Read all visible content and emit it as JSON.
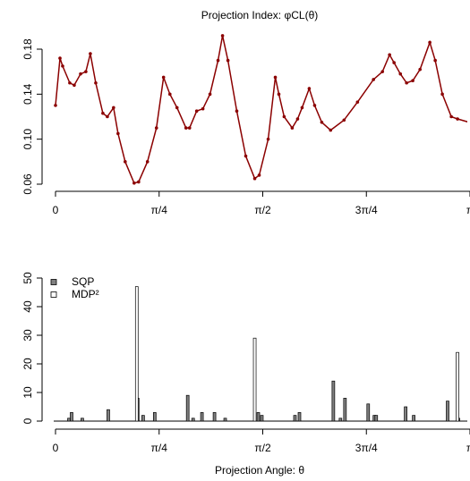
{
  "chart_data": [
    {
      "type": "line",
      "title": "Projection Index: φCL(θ)",
      "color": "#8b0000",
      "x": [
        0,
        0.034,
        0.054,
        0.108,
        0.142,
        0.19,
        0.23,
        0.264,
        0.305,
        0.359,
        0.393,
        0.44,
        0.474,
        0.528,
        0.596,
        0.63,
        0.697,
        0.765,
        0.819,
        0.867,
        0.921,
        0.989,
        1.016,
        1.07,
        1.117,
        1.171,
        1.232,
        1.266,
        1.307,
        1.374,
        1.442,
        1.51,
        1.544,
        1.612,
        1.666,
        1.693,
        1.733,
        1.794,
        1.835,
        1.869,
        1.923,
        1.964,
        2.018,
        2.085,
        2.187,
        2.289,
        2.41,
        2.478,
        2.532,
        2.566,
        2.614,
        2.661,
        2.708,
        2.763,
        2.837,
        2.878,
        2.932,
        3.0,
        3.047,
        3.135
      ],
      "values": [
        0.13,
        0.172,
        0.165,
        0.15,
        0.148,
        0.158,
        0.16,
        0.176,
        0.15,
        0.123,
        0.12,
        0.128,
        0.105,
        0.08,
        0.061,
        0.062,
        0.08,
        0.11,
        0.155,
        0.14,
        0.128,
        0.11,
        0.11,
        0.125,
        0.127,
        0.14,
        0.17,
        0.192,
        0.17,
        0.125,
        0.085,
        0.065,
        0.068,
        0.1,
        0.155,
        0.14,
        0.12,
        0.11,
        0.118,
        0.128,
        0.145,
        0.13,
        0.115,
        0.108,
        0.117,
        0.133,
        0.153,
        0.16,
        0.175,
        0.168,
        0.158,
        0.15,
        0.152,
        0.162,
        0.186,
        0.17,
        0.14,
        0.12,
        0.118,
        0.115
      ],
      "xlim": [
        0,
        3.1416
      ],
      "ylim": [
        0.06,
        0.18
      ],
      "xticks": [
        {
          "value": 0,
          "label": "0"
        },
        {
          "value": 0.7854,
          "label": "π/4"
        },
        {
          "value": 1.5708,
          "label": "π/2"
        },
        {
          "value": 2.3562,
          "label": "3π/4"
        },
        {
          "value": 3.1416,
          "label": "π"
        }
      ],
      "yticks": [
        {
          "value": 0.06,
          "label": "0.06"
        },
        {
          "value": 0.1,
          "label": "0.10"
        },
        {
          "value": 0.14,
          "label": "0.14"
        },
        {
          "value": 0.18,
          "label": "0.18"
        }
      ]
    },
    {
      "type": "bar",
      "xlabel": "Projection Angle: θ",
      "legend": "topleft",
      "series": [
        {
          "name": "SQP",
          "color": "#808080",
          "x": [
            0.102,
            0.122,
            0.203,
            0.4,
            0.623,
            0.664,
            0.752,
            1.002,
            1.043,
            1.11,
            1.205,
            1.286,
            1.537,
            1.564,
            1.815,
            1.849,
            2.106,
            2.16,
            2.194,
            2.37,
            2.417,
            2.431,
            2.654,
            2.715,
            2.972,
            3.054
          ],
          "values": [
            1,
            3,
            1,
            4,
            8,
            2,
            3,
            9,
            1,
            3,
            3,
            1,
            3,
            2,
            2,
            3,
            14,
            1,
            8,
            6,
            2,
            2,
            5,
            2,
            7,
            1
          ]
        },
        {
          "name": "MDP²",
          "color": "#ffffff",
          "x": [
            0.616,
            1.51,
            3.047
          ],
          "values": [
            47,
            29,
            24
          ]
        }
      ],
      "xlim": [
        0,
        3.1416
      ],
      "ylim": [
        0,
        50
      ],
      "xticks": [
        {
          "value": 0,
          "label": "0"
        },
        {
          "value": 0.7854,
          "label": "π/4"
        },
        {
          "value": 1.5708,
          "label": "π/2"
        },
        {
          "value": 2.3562,
          "label": "3π/4"
        },
        {
          "value": 3.1416,
          "label": "π"
        }
      ],
      "yticks": [
        0,
        10,
        20,
        30,
        40,
        50
      ]
    }
  ]
}
